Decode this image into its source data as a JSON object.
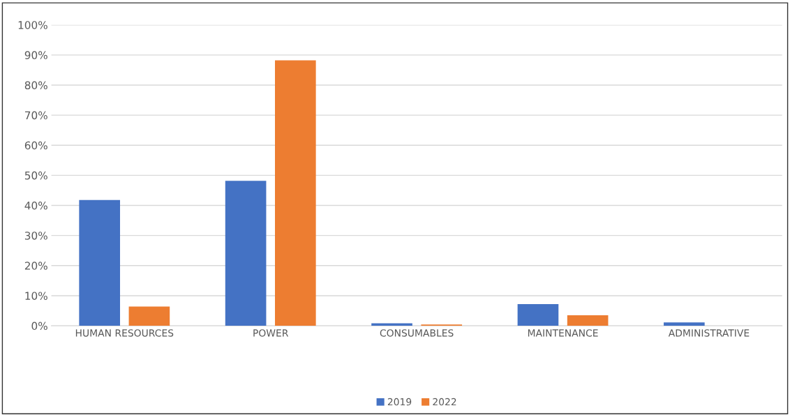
{
  "chart_data": {
    "type": "bar",
    "categories": [
      "HUMAN RESOURCES",
      "POWER",
      "CONSUMABLES",
      "MAINTENANCE",
      "ADMINISTRATIVE"
    ],
    "series": [
      {
        "name": "2019",
        "color": "#4472c4",
        "values": [
          41.8,
          48.2,
          0.8,
          7.2,
          1.1
        ]
      },
      {
        "name": "2022",
        "color": "#ed7d31",
        "values": [
          6.4,
          88.2,
          0.4,
          3.5,
          0
        ]
      }
    ],
    "ylim": [
      0,
      100
    ],
    "yticks": [
      {
        "value": 0,
        "label": "0%"
      },
      {
        "value": 10,
        "label": "10%"
      },
      {
        "value": 20,
        "label": "20%"
      },
      {
        "value": 30,
        "label": "30%"
      },
      {
        "value": 40,
        "label": "40%"
      },
      {
        "value": 50,
        "label": "50%"
      },
      {
        "value": 60,
        "label": "60%"
      },
      {
        "value": 70,
        "label": "70%"
      },
      {
        "value": 80,
        "label": "80%"
      },
      {
        "value": 90,
        "label": "90%"
      },
      {
        "value": 100,
        "label": "100%"
      }
    ],
    "grid": "y",
    "legend": "bottom"
  }
}
